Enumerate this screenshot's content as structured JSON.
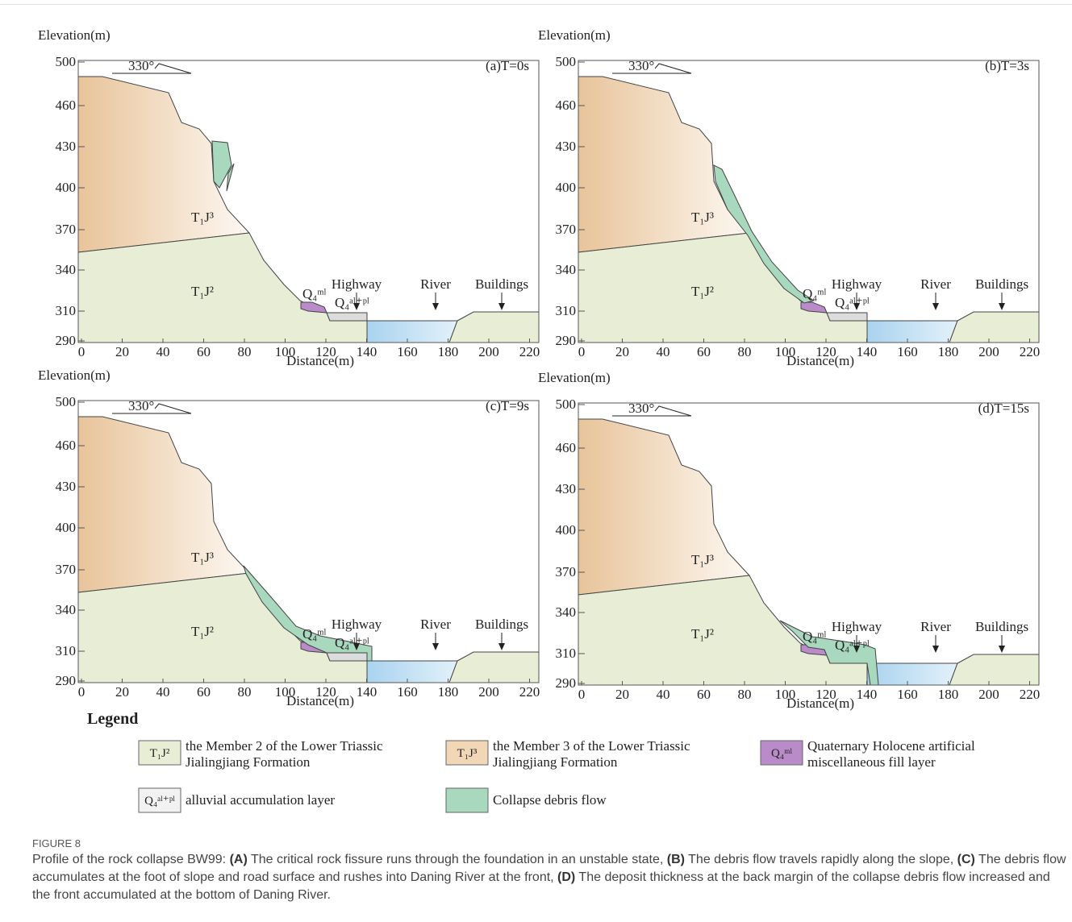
{
  "panels": [
    {
      "label": "(a)T=0s",
      "y_title": "Elevation(m)",
      "x_title": "Distance(m)",
      "direction": "330°",
      "yticks": [
        500,
        460,
        430,
        400,
        370,
        340,
        310,
        290
      ],
      "xticks": [
        0,
        20,
        40,
        60,
        80,
        100,
        120,
        140,
        160,
        180,
        200,
        220
      ],
      "units": {
        "upper": "T₁J³",
        "lower": "T₁J²",
        "fill": "Q₄ᵐˡ",
        "alluvial": "Q₄ᵃˡ⁺ᵖˡ"
      },
      "features": [
        "Highway",
        "River",
        "Buildings"
      ]
    },
    {
      "label": "(b)T=3s",
      "y_title": "Elevation(m)",
      "x_title": "Distance(m)",
      "direction": "330°",
      "yticks": [
        500,
        460,
        430,
        400,
        370,
        340,
        310,
        290
      ],
      "xticks": [
        0,
        20,
        40,
        60,
        80,
        100,
        120,
        140,
        160,
        180,
        200,
        220
      ],
      "units": {
        "upper": "T₁J³",
        "lower": "T₁J²",
        "fill": "Q₄ᵐˡ",
        "alluvial": "Q₄ᵃˡ⁺ᵖˡ"
      },
      "features": [
        "Highway",
        "River",
        "Buildings"
      ]
    },
    {
      "label": "(c)T=9s",
      "y_title": "Elevation(m)",
      "x_title": "Distance(m)",
      "direction": "330°",
      "yticks": [
        500,
        460,
        430,
        400,
        370,
        340,
        310,
        290
      ],
      "xticks": [
        0,
        20,
        40,
        60,
        80,
        100,
        120,
        140,
        160,
        180,
        200,
        220
      ],
      "units": {
        "upper": "T₁J³",
        "lower": "T₁J²",
        "fill": "Q₄ᵐˡ",
        "alluvial": "Q₄ᵃˡ⁺ᵖˡ"
      },
      "features": [
        "Highway",
        "River",
        "Buildings"
      ]
    },
    {
      "label": "(d)T=15s",
      "y_title": "Elevation(m)",
      "x_title": "Distance(m)",
      "direction": "330°",
      "yticks": [
        500,
        460,
        430,
        400,
        370,
        340,
        310,
        290
      ],
      "xticks": [
        0,
        20,
        40,
        60,
        80,
        100,
        120,
        140,
        160,
        180,
        200,
        220
      ],
      "units": {
        "upper": "T₁J³",
        "lower": "T₁J²",
        "fill": "Q₄ᵐˡ",
        "alluvial": "Q₄ᵃˡ⁺ᵖˡ"
      },
      "features": [
        "Highway",
        "River",
        "Buildings"
      ]
    }
  ],
  "legend": {
    "title": "Legend",
    "items": [
      {
        "symbol": "T₁J²",
        "lines": [
          "the Member 2 of the Lower Triassic",
          "Jialingjiang Formation"
        ]
      },
      {
        "symbol": "T₁J³",
        "lines": [
          "the Member 3 of the Lower Triassic",
          "Jialingjiang Formation"
        ]
      },
      {
        "symbol": "Q₄ᵐˡ",
        "lines": [
          "Quaternary Holocene artificial",
          "miscellaneous fill layer"
        ]
      },
      {
        "symbol": "Q₄ᵃˡ⁺ᵖˡ",
        "lines": [
          "alluvial accumulation layer"
        ]
      },
      {
        "lines": [
          "Collapse debris flow"
        ]
      }
    ]
  },
  "caption": {
    "label": "FIGURE 8",
    "segments": [
      "Profile of the rock collapse BW99: ",
      "(A)",
      " The critical rock fissure runs through the foundation in an unstable state, ",
      "(B)",
      " The debris flow travels rapidly along the slope, ",
      "(C)",
      " The debris flow accumulates at the foot of slope and road surface and rushes into Daning River at the front, ",
      "(D)",
      " The deposit thickness at the back margin of the collapse debris flow increased and the front accumulated at the bottom of Daning River."
    ]
  }
}
